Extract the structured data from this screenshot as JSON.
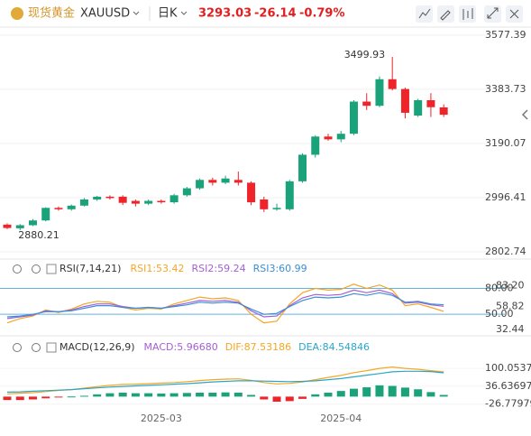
{
  "header": {
    "name": "现货黄金",
    "symbol": "XAUUSD",
    "period": "日K",
    "price": "3293.03",
    "change": "-26.14",
    "change_pct": "-0.79%"
  },
  "chart_data": [
    {
      "type": "candlestick",
      "up_color": "#1aa37a",
      "down_color": "#ef232a",
      "ylim": [
        2802.74,
        3577.39
      ],
      "yticks": [
        2802.74,
        2996.41,
        3190.07,
        3383.73,
        3577.39
      ],
      "open": [
        2900,
        2887,
        2898,
        2915,
        2960,
        2955,
        2968,
        2990,
        3000,
        3000,
        2985,
        2975,
        2985,
        2980,
        3005,
        3030,
        3060,
        3050,
        3060,
        3050,
        2990,
        2955,
        2955,
        3055,
        3150,
        3215,
        3205,
        3225,
        3340,
        3325,
        3420,
        3385,
        3290,
        3345,
        3319.17
      ],
      "high": [
        2905,
        2902,
        2920,
        2962,
        2965,
        2972,
        2995,
        3003,
        3005,
        3005,
        2990,
        2990,
        2990,
        3010,
        3035,
        3065,
        3068,
        3075,
        3090,
        3055,
        3000,
        2975,
        3060,
        3155,
        3220,
        3225,
        3235,
        3345,
        3370,
        3430,
        3499.93,
        3390,
        3350,
        3370,
        3330
      ],
      "low": [
        2884,
        2880.21,
        2895,
        2912,
        2950,
        2950,
        2965,
        2985,
        2990,
        2970,
        2965,
        2970,
        2975,
        2975,
        3000,
        3025,
        3040,
        3045,
        3040,
        2970,
        2945,
        2950,
        2950,
        3050,
        3140,
        3200,
        3195,
        3220,
        3310,
        3320,
        3380,
        3280,
        3285,
        3285,
        3285
      ],
      "close": [
        2888,
        2898,
        2915,
        2960,
        2955,
        2968,
        2990,
        3000,
        2995,
        2978,
        2975,
        2985,
        2980,
        3005,
        3030,
        3060,
        3050,
        3065,
        3050,
        2980,
        2955,
        2960,
        3055,
        3150,
        3215,
        3205,
        3225,
        3340,
        3325,
        3420,
        3385,
        3300,
        3345,
        3320,
        3293.03
      ],
      "annotations": [
        {
          "text": "3499.93"
        },
        {
          "text": "2880.21"
        }
      ]
    },
    {
      "type": "line",
      "title": "RSI(7,14,21)",
      "ylim": [
        25,
        90
      ],
      "yticks": [
        {
          "value": 80,
          "label": "80.00"
        },
        {
          "value": 50,
          "label": "50.00"
        }
      ],
      "annotations": [
        {
          "value": 83.2,
          "label": "83.20"
        },
        {
          "value": 58.82,
          "label": "58.82"
        },
        {
          "value": 32.44,
          "label": "32.44"
        }
      ],
      "series": [
        {
          "name": "RSI1:53.42",
          "color": "#f5a623",
          "values": [
            40,
            45,
            48,
            55,
            52,
            56,
            62,
            65,
            64,
            58,
            55,
            57,
            56,
            62,
            66,
            70,
            68,
            69,
            66,
            50,
            40,
            42,
            62,
            75,
            80,
            78,
            79,
            85,
            80,
            84,
            78,
            60,
            62,
            58,
            53.42
          ]
        },
        {
          "name": "RSI2:59.24",
          "color": "#a35fd3",
          "values": [
            45,
            47,
            49,
            54,
            53,
            55,
            59,
            62,
            62,
            59,
            57,
            58,
            57,
            60,
            63,
            66,
            65,
            66,
            64,
            54,
            47,
            48,
            60,
            69,
            73,
            72,
            73,
            78,
            75,
            78,
            74,
            63,
            64,
            61,
            59.24
          ]
        },
        {
          "name": "RSI3:60.99",
          "color": "#3a8fd6",
          "values": [
            47,
            48,
            50,
            53,
            53,
            54,
            57,
            60,
            60,
            58,
            57,
            58,
            57,
            59,
            61,
            64,
            63,
            64,
            63,
            56,
            50,
            51,
            59,
            66,
            70,
            69,
            70,
            74,
            72,
            75,
            72,
            64,
            65,
            62,
            60.99
          ]
        }
      ]
    },
    {
      "type": "combo",
      "title": "MACD(12,26,9)",
      "ylim": [
        -50,
        190
      ],
      "yticks": [
        100.05374,
        36.63697,
        -26.77979
      ],
      "categories": [
        null,
        null,
        null,
        null,
        null,
        null,
        null,
        null,
        null,
        null,
        null,
        null,
        "2025-03",
        null,
        null,
        null,
        null,
        null,
        null,
        null,
        null,
        null,
        null,
        null,
        null,
        null,
        "2025-04",
        null,
        null,
        null,
        null,
        null,
        null,
        null,
        null
      ],
      "series": [
        {
          "name": "MACD:5.96680",
          "type": "bar",
          "color": "#a35fd3",
          "up_color": "#1aa37a",
          "down_color": "#ef232a",
          "values": [
            -12,
            -12,
            -10,
            -6,
            -3,
            0.5,
            3,
            8,
            12,
            14,
            12,
            12,
            11,
            12,
            13,
            14,
            14,
            15,
            14,
            6,
            -10,
            -18,
            -16,
            -8,
            8,
            14,
            20,
            28,
            33,
            40,
            38,
            32,
            26,
            16,
            5.9668
          ]
        },
        {
          "name": "DIF:87.53186",
          "type": "line",
          "color": "#f5a623",
          "values": [
            10,
            12,
            14,
            18,
            22,
            25,
            30,
            35,
            40,
            43,
            44,
            46,
            48,
            50,
            53,
            57,
            60,
            62,
            63,
            58,
            50,
            45,
            47,
            52,
            60,
            68,
            75,
            85,
            92,
            100,
            105,
            100,
            97,
            92,
            87.53186
          ]
        },
        {
          "name": "DEA:84.54846",
          "type": "line",
          "color": "#2aa6c9",
          "values": [
            16,
            17,
            19,
            21,
            23,
            25,
            28,
            31,
            34,
            36,
            38,
            40,
            42,
            44,
            46,
            49,
            52,
            54,
            56,
            56,
            55,
            54,
            53,
            54,
            56,
            60,
            64,
            70,
            76,
            82,
            88,
            90,
            90,
            89,
            84.54846
          ]
        }
      ]
    }
  ]
}
